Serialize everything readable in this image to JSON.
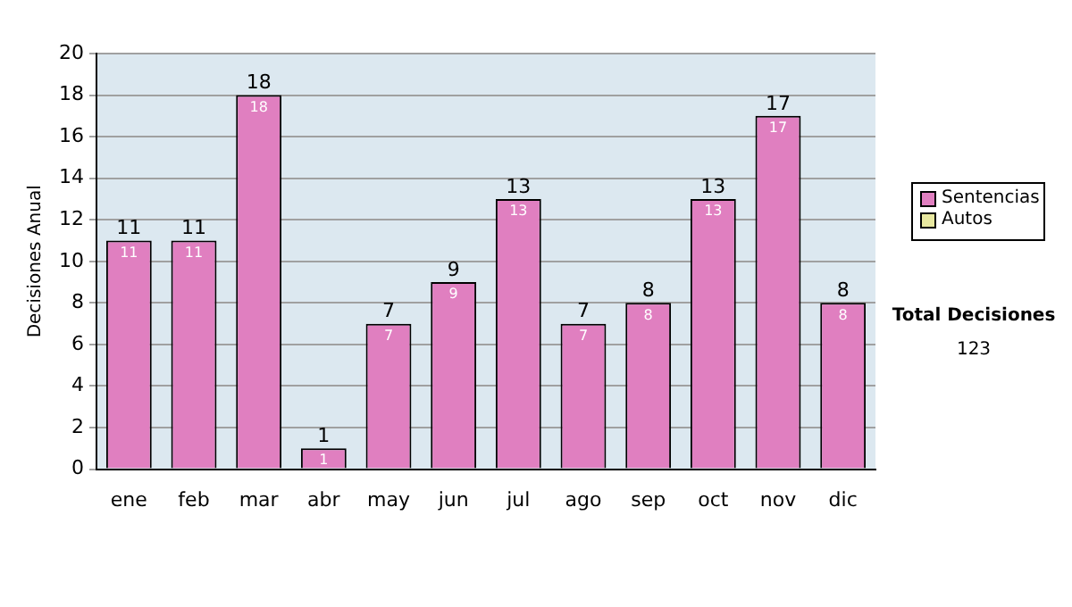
{
  "chart_data": {
    "type": "bar",
    "ylabel": "Decisiones Anual",
    "categories": [
      "ene",
      "feb",
      "mar",
      "abr",
      "may",
      "jun",
      "jul",
      "ago",
      "sep",
      "oct",
      "nov",
      "dic"
    ],
    "series": [
      {
        "name": "Sentencias",
        "color": "#e07fc0",
        "values": [
          11,
          11,
          18,
          1,
          7,
          9,
          13,
          7,
          8,
          13,
          17,
          8
        ],
        "value_labels": [
          "11",
          "11",
          "18",
          "1",
          "7",
          "9",
          "13",
          "7",
          "8",
          "13",
          "17",
          "8"
        ]
      },
      {
        "name": "Autos",
        "color": "#e8e8a0",
        "values": [
          0,
          0,
          0,
          0,
          0,
          0,
          0,
          0,
          0,
          0,
          0,
          0
        ]
      }
    ],
    "stacked": true,
    "totals": [
      "11",
      "11",
      "18",
      "1",
      "7",
      "9",
      "13",
      "7",
      "8",
      "13",
      "17",
      "8"
    ],
    "ylim": [
      0,
      20
    ],
    "yticks": [
      0,
      2,
      4,
      6,
      8,
      10,
      12,
      14,
      16,
      18,
      20
    ],
    "grid": "y",
    "legend": "right",
    "annotations": [
      "Total Decisiones",
      "123"
    ]
  }
}
